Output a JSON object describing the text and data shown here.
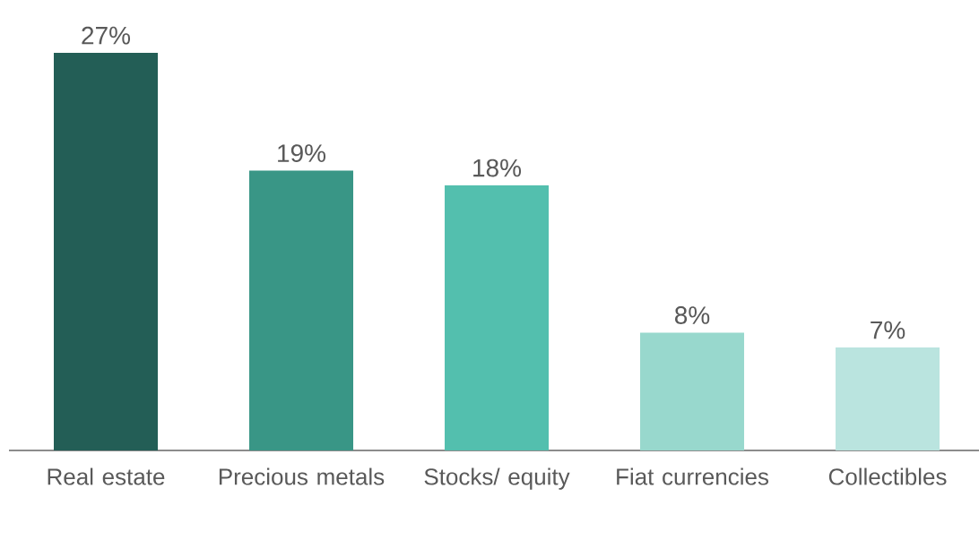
{
  "chart_data": {
    "type": "bar",
    "categories": [
      "Real estate",
      "Precious metals",
      "Stocks/ equity",
      "Fiat currencies",
      "Collectibles"
    ],
    "values": [
      27,
      19,
      18,
      8,
      7
    ],
    "colors": [
      "#235e56",
      "#399686",
      "#53bfae",
      "#98d8cd",
      "#bae4df"
    ],
    "value_labels": [
      "27%",
      "19%",
      "18%",
      "8%",
      "7%"
    ]
  }
}
